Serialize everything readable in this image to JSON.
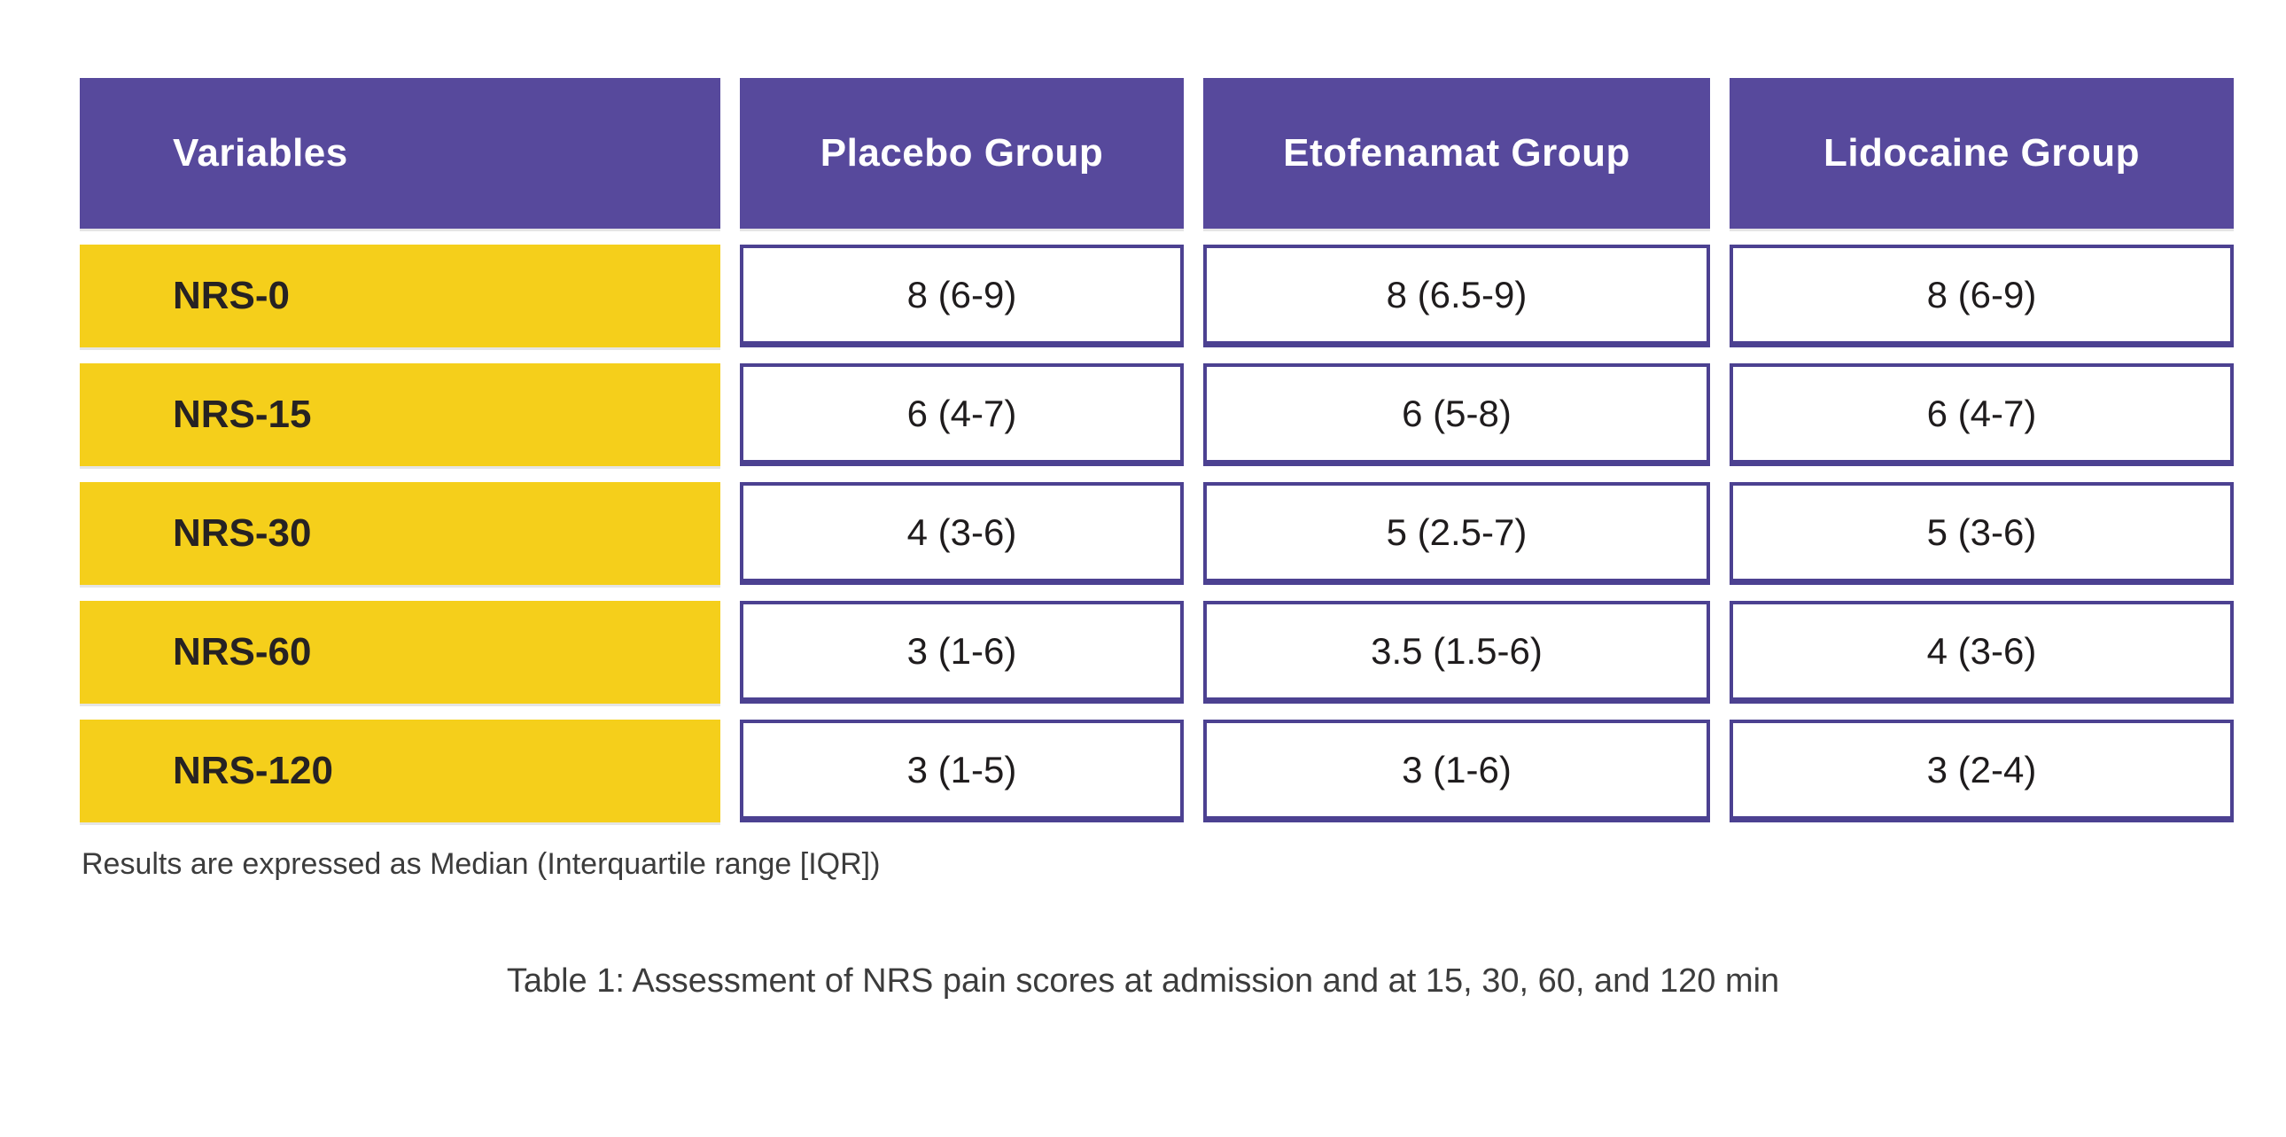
{
  "colors": {
    "header_bg": "#57499c",
    "label_bg": "#f5cf1b",
    "cell_border": "#4c4191",
    "header_text": "#ffffff",
    "label_text": "#262223",
    "value_text": "#1f1c1d",
    "note_text": "#3c3c3c"
  },
  "chart_data": {
    "type": "table",
    "title": "Table 1: Assessment of NRS pain scores at admission and at 15, 30, 60, and 120 min",
    "footnote": "Results are expressed as Median (Interquartile range [IQR])",
    "columns": [
      "Variables",
      "Placebo Group",
      "Etofenamat Group",
      "Lidocaine Group"
    ],
    "rows": [
      {
        "label": "NRS-0",
        "values": [
          "8 (6-9)",
          "8 (6.5-9)",
          "8 (6-9)"
        ]
      },
      {
        "label": "NRS-15",
        "values": [
          "6 (4-7)",
          "6 (5-8)",
          "6 (4-7)"
        ]
      },
      {
        "label": "NRS-30",
        "values": [
          "4 (3-6)",
          "5 (2.5-7)",
          "5 (3-6)"
        ]
      },
      {
        "label": "NRS-60",
        "values": [
          "3 (1-6)",
          "3.5 (1.5-6)",
          "4 (3-6)"
        ]
      },
      {
        "label": "NRS-120",
        "values": [
          "3 (1-5)",
          "3 (1-6)",
          "3 (2-4)"
        ]
      }
    ]
  }
}
